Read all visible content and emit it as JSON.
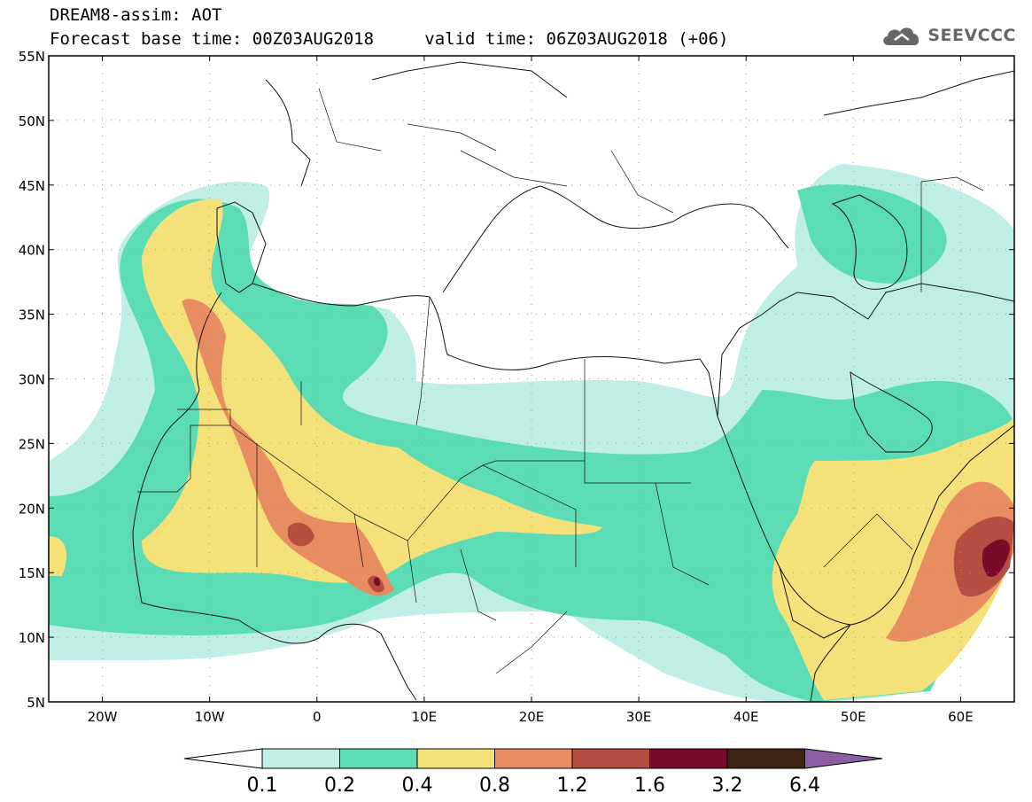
{
  "title": "DREAM8-assim: AOT",
  "base_time_label": "Forecast base time: 00Z03AUG2018",
  "valid_time_label": "valid time: 06Z03AUG2018 (+06)",
  "logo_text": "SEEVCCC",
  "map": {
    "lat_labels": [
      "55N",
      "50N",
      "45N",
      "40N",
      "35N",
      "30N",
      "25N",
      "20N",
      "15N",
      "10N",
      "5N"
    ],
    "lon_labels": [
      "20W",
      "10W",
      "0",
      "10E",
      "20E",
      "30E",
      "40E",
      "50E",
      "60E"
    ],
    "extent": {
      "lon_min": -25,
      "lon_max": 65,
      "lat_min": 5,
      "lat_max": 55
    }
  },
  "colorbar": {
    "ticks": [
      "0.1",
      "0.2",
      "0.4",
      "0.8",
      "1.2",
      "1.6",
      "3.2",
      "6.4"
    ],
    "colors": [
      "#ffffff",
      "#bfeee5",
      "#5cdcb5",
      "#f5e17a",
      "#e88c62",
      "#b74d40",
      "#7b0a2a",
      "#3e2414",
      "#8d5ea3"
    ]
  },
  "aot_levels": {
    "c1": "#bfeee5",
    "c2": "#5cdcb5",
    "c3": "#f5e17a",
    "c4": "#e88c62",
    "c5": "#b74d40",
    "c6": "#7b0a2a"
  }
}
